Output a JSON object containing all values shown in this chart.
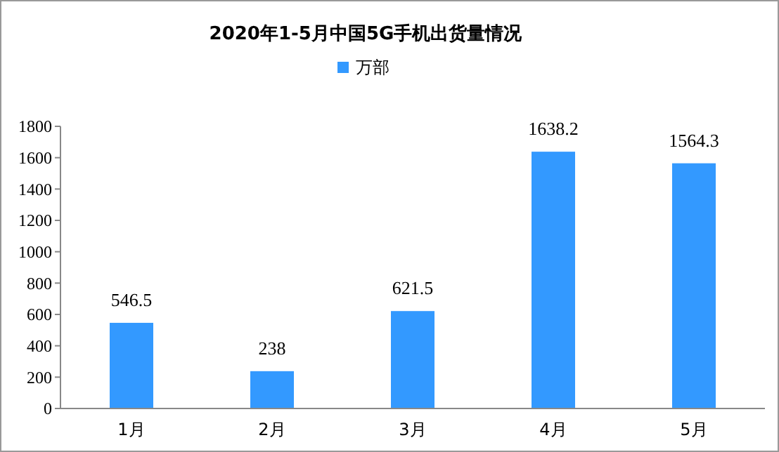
{
  "chart_data": {
    "type": "bar",
    "title": "2020年1-5月中国5G手机出货量情况",
    "categories": [
      "1月",
      "2月",
      "3月",
      "4月",
      "5月"
    ],
    "series": [
      {
        "name": "万部",
        "color": "#3399ff",
        "values": [
          546.5,
          238,
          621.5,
          1638.2,
          1564.3
        ]
      }
    ],
    "ylim": [
      0,
      1800
    ],
    "yticks": [
      0,
      200,
      400,
      600,
      800,
      1000,
      1200,
      1400,
      1600,
      1800
    ],
    "data_labels": true,
    "legend": "top",
    "grid": false
  }
}
